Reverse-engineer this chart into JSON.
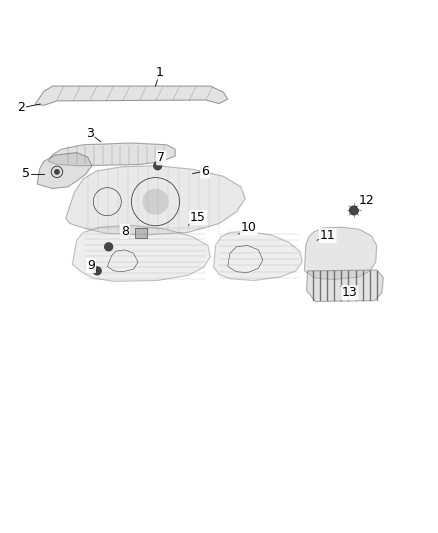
{
  "bg_color": "#ffffff",
  "line_color": "#444444",
  "label_color": "#000000",
  "font_size": 9,
  "line_width": 0.8
}
